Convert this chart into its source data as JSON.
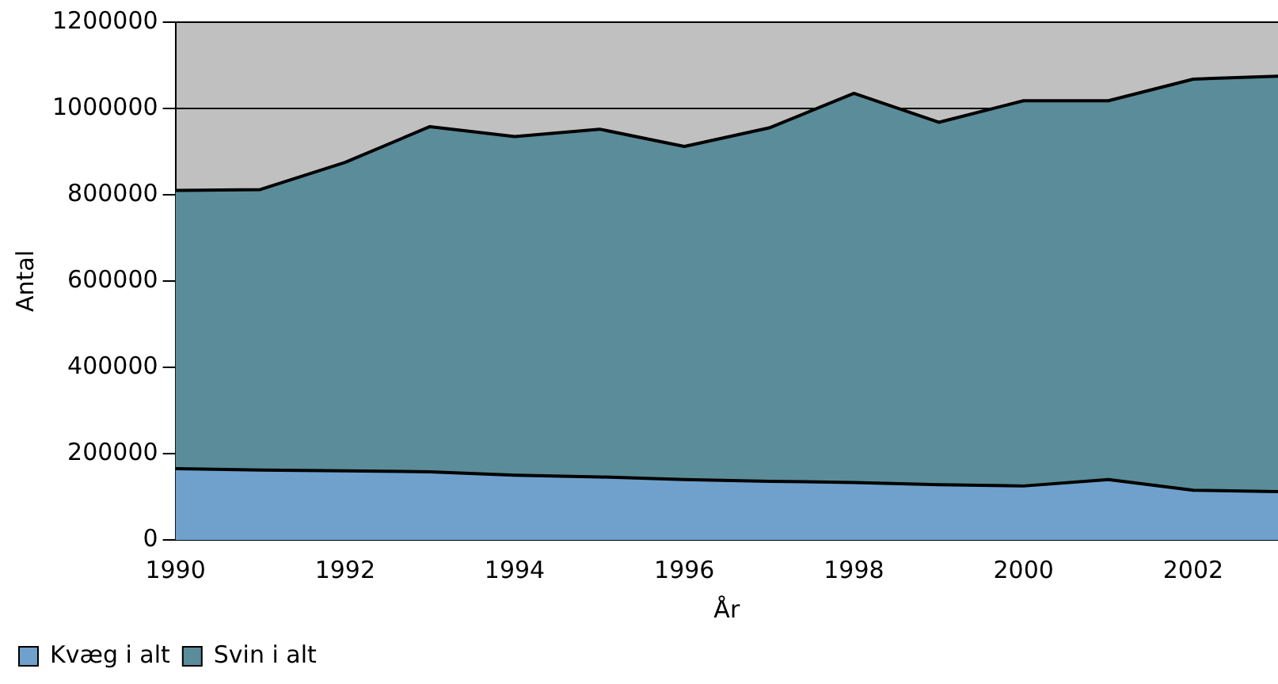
{
  "chart_data": {
    "type": "area",
    "stacked": true,
    "xlabel": "År",
    "ylabel": "Antal",
    "x": [
      1990,
      1991,
      1992,
      1993,
      1994,
      1995,
      1996,
      1997,
      1998,
      1999,
      2000,
      2001,
      2002,
      2003
    ],
    "series": [
      {
        "name": "Kvæg i alt",
        "color": "#6fa1cc",
        "values": [
          165000,
          162000,
          160000,
          158000,
          150000,
          146000,
          140000,
          136000,
          133000,
          128000,
          125000,
          140000,
          115000,
          112000
        ]
      },
      {
        "name": "Svin i alt",
        "color": "#5a8c99",
        "values": [
          645000,
          650000,
          715000,
          800000,
          785000,
          806000,
          772000,
          819000,
          902000,
          840000,
          893000,
          878000,
          953000,
          963000
        ]
      }
    ],
    "xlim": [
      1990,
      2003
    ],
    "xticks": [
      1990,
      1992,
      1994,
      1996,
      1998,
      2000,
      2002
    ],
    "ylim": [
      0,
      1200000
    ],
    "yticks": [
      0,
      200000,
      400000,
      600000,
      800000,
      1000000,
      1200000
    ],
    "grid": "y",
    "legend": "bottom left"
  }
}
